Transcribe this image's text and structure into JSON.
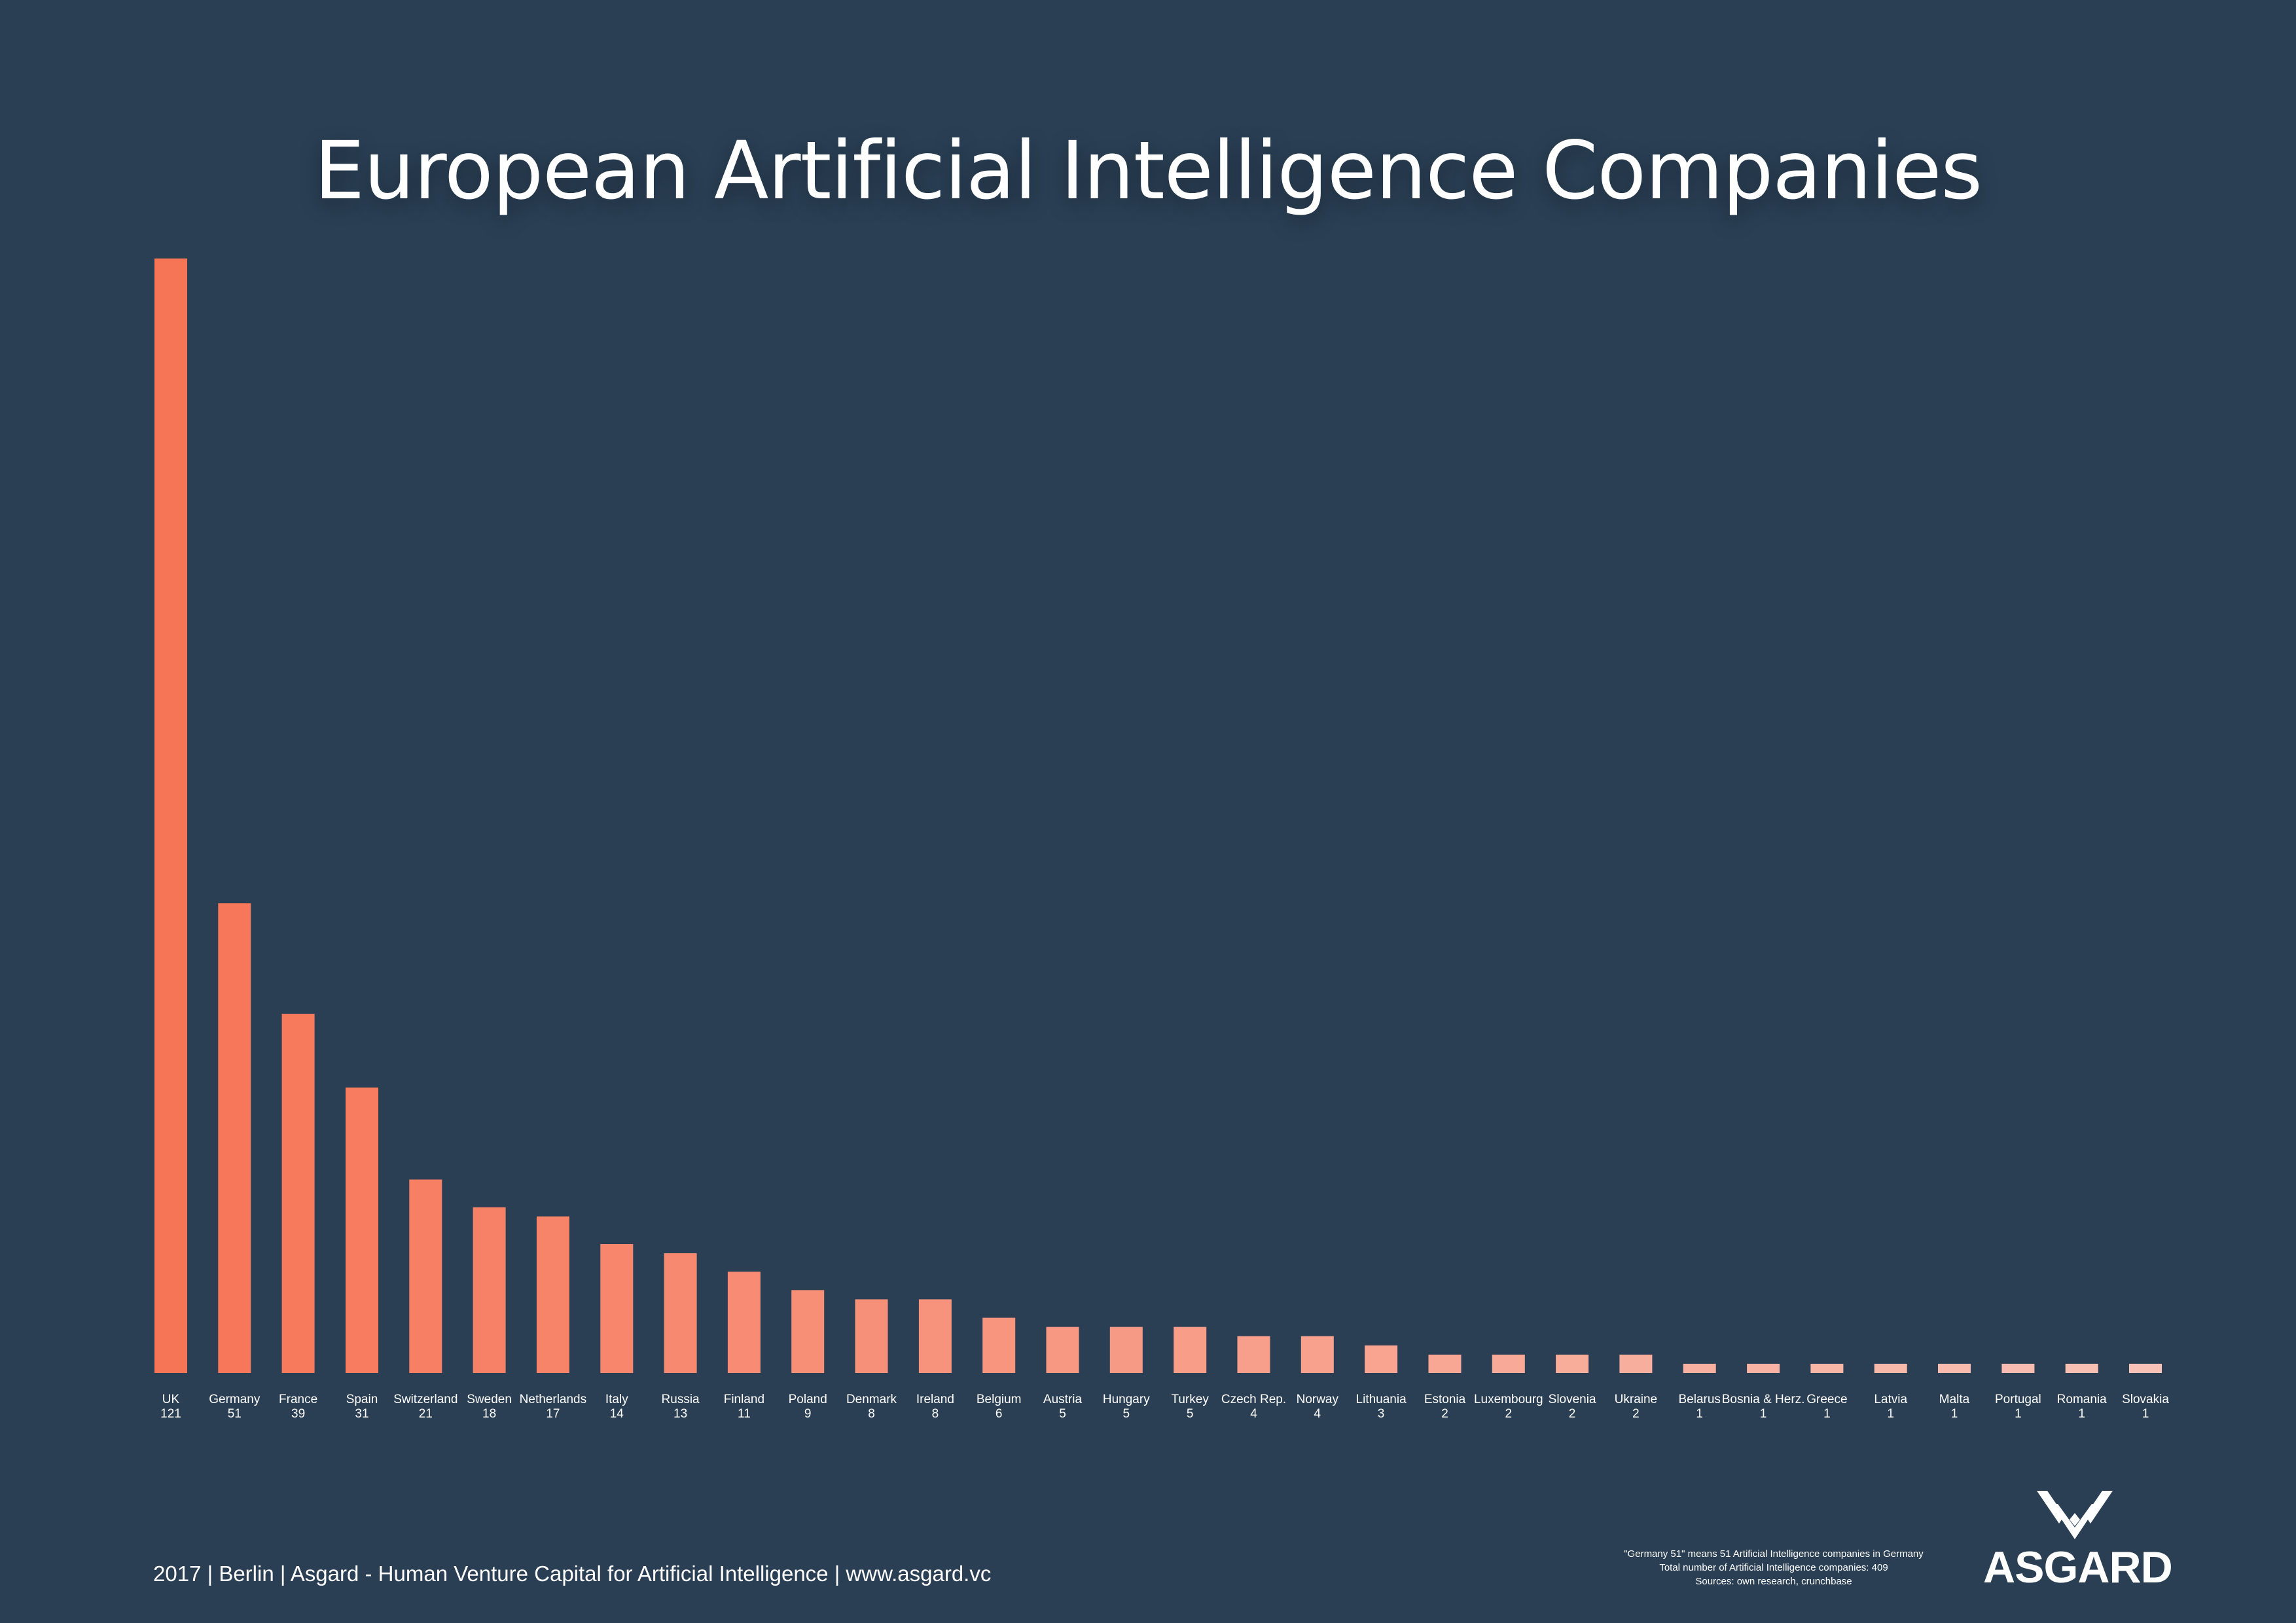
{
  "title": "European Artificial Intelligence Companies",
  "footer": "2017 | Berlin | Asgard - Human Venture Capital for Artificial Intelligence | www.asgard.vc",
  "notes": [
    "\"Germany 51\" means 51 Artificial Intelligence companies in Germany",
    "Total number of Artificial Intelligence companies: 409",
    "Sources: own research, crunchbase"
  ],
  "logo": {
    "text": "ASGARD",
    "icon": "asgard-logo-icon"
  },
  "colors": {
    "background": "#2a3f54",
    "bar_start": "#f77557",
    "bar_end": "#f8c2b6",
    "text": "#ffffff"
  },
  "chart_data": {
    "type": "bar",
    "title": "European Artificial Intelligence Companies",
    "xlabel": "",
    "ylabel": "",
    "grid": false,
    "categories": [
      "UK",
      "Germany",
      "France",
      "Spain",
      "Switzerland",
      "Sweden",
      "Netherlands",
      "Italy",
      "Russia",
      "Finland",
      "Poland",
      "Denmark",
      "Ireland",
      "Belgium",
      "Austria",
      "Hungary",
      "Turkey",
      "Czech Rep.",
      "Norway",
      "Lithuania",
      "Estonia",
      "Luxembourg",
      "Slovenia",
      "Ukraine",
      "Belarus",
      "Bosnia & Herz.",
      "Greece",
      "Latvia",
      "Malta",
      "Portugal",
      "Romania",
      "Slovakia"
    ],
    "values": [
      121,
      51,
      39,
      31,
      21,
      18,
      17,
      14,
      13,
      11,
      9,
      8,
      8,
      6,
      5,
      5,
      5,
      4,
      4,
      3,
      2,
      2,
      2,
      2,
      1,
      1,
      1,
      1,
      1,
      1,
      1,
      1
    ],
    "ylim": [
      0,
      121
    ]
  }
}
